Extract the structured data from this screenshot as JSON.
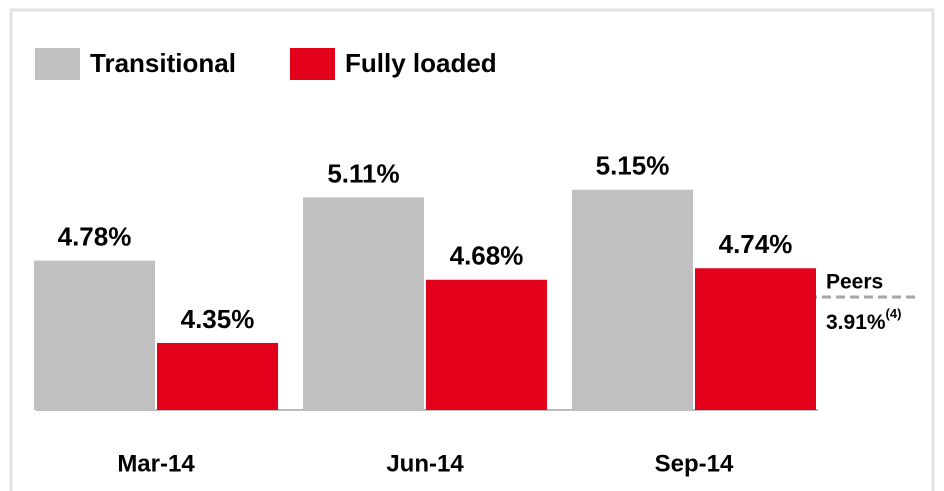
{
  "chart_data": {
    "type": "bar",
    "categories": [
      "Mar-14",
      "Jun-14",
      "Sep-14"
    ],
    "series": [
      {
        "name": "Transitional",
        "color": "#c0c0c0",
        "values": [
          4.78,
          5.11,
          5.15
        ],
        "value_labels": [
          "4.78%",
          "5.11%",
          "5.15%"
        ]
      },
      {
        "name": "Fully loaded",
        "color": "#e2001a",
        "values": [
          4.35,
          4.68,
          4.74
        ],
        "value_labels": [
          "4.35%",
          "4.68%",
          "4.74%"
        ]
      }
    ],
    "ylim": [
      4,
      5.3
    ],
    "annotations": [
      "Peers",
      "3.91%",
      "(4)"
    ]
  }
}
